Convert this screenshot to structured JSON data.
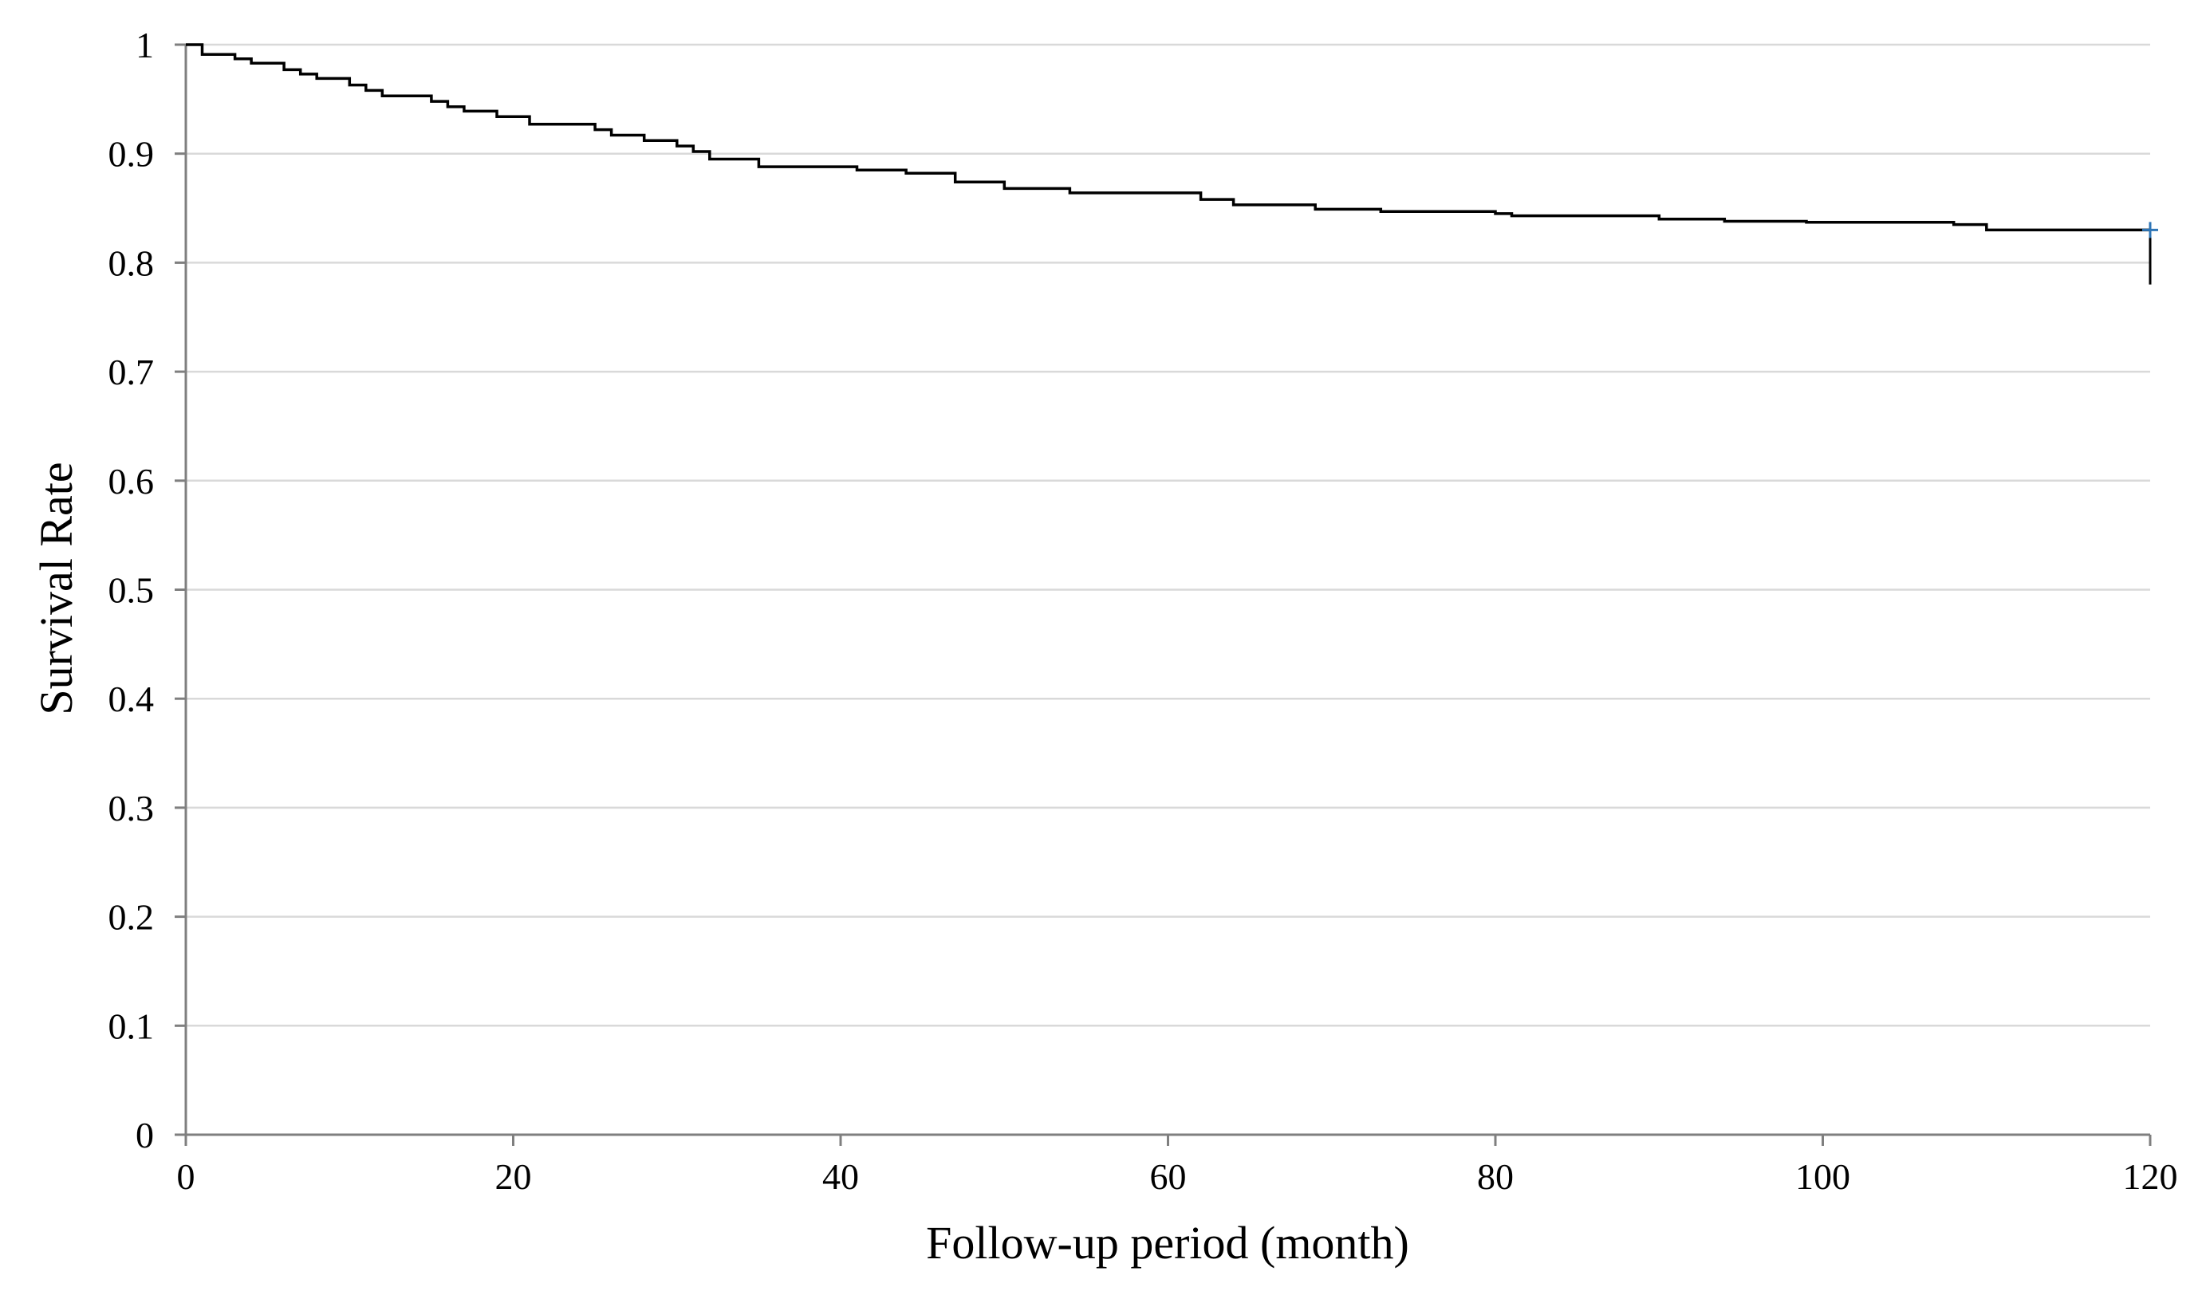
{
  "chart_data": {
    "type": "line",
    "step": true,
    "title": "",
    "xlabel": "Follow-up period (month)",
    "ylabel": "Survival Rate",
    "xlim": [
      0,
      120
    ],
    "ylim": [
      0,
      1
    ],
    "x_ticks": [
      0,
      20,
      40,
      60,
      80,
      100,
      120
    ],
    "x_tick_labels": [
      "0",
      "20",
      "40",
      "60",
      "80",
      "100",
      "120"
    ],
    "y_ticks": [
      0,
      0.1,
      0.2,
      0.3,
      0.4,
      0.5,
      0.6,
      0.7,
      0.8,
      0.9,
      1
    ],
    "y_tick_labels": [
      "0",
      "0.1",
      "0.2",
      "0.3",
      "0.4",
      "0.5",
      "0.6",
      "0.7",
      "0.8",
      "0.9",
      "1"
    ],
    "grid": "horizontal",
    "legend": "none",
    "colors": {
      "line": "#000000",
      "grid": "#d9d9d9",
      "axis": "#7f7f7f",
      "censor_marker": "#2e75b6"
    },
    "series": [
      {
        "x": [
          0,
          1,
          1,
          3,
          3,
          4,
          4,
          6,
          6,
          7,
          7,
          8,
          8,
          10,
          10,
          11,
          11,
          12,
          12,
          15,
          15,
          16,
          16,
          17,
          17,
          19,
          19,
          21,
          21,
          25,
          25,
          26,
          26,
          28,
          28,
          30,
          30,
          31,
          31,
          32,
          32,
          35,
          35,
          41,
          41,
          44,
          44,
          47,
          47,
          50,
          50,
          54,
          54,
          62,
          62,
          64,
          64,
          69,
          69,
          73,
          73,
          80,
          80,
          81,
          81,
          90,
          90,
          94,
          94,
          99,
          99,
          108,
          108,
          110,
          110,
          120
        ],
        "y": [
          1.0,
          1.0,
          0.991,
          0.991,
          0.987,
          0.987,
          0.983,
          0.983,
          0.977,
          0.977,
          0.973,
          0.973,
          0.969,
          0.969,
          0.963,
          0.963,
          0.958,
          0.958,
          0.953,
          0.953,
          0.948,
          0.948,
          0.943,
          0.943,
          0.939,
          0.939,
          0.934,
          0.934,
          0.927,
          0.927,
          0.922,
          0.922,
          0.917,
          0.917,
          0.912,
          0.912,
          0.907,
          0.907,
          0.902,
          0.902,
          0.895,
          0.895,
          0.888,
          0.888,
          0.885,
          0.885,
          0.882,
          0.882,
          0.874,
          0.874,
          0.868,
          0.868,
          0.864,
          0.864,
          0.858,
          0.858,
          0.853,
          0.853,
          0.849,
          0.849,
          0.847,
          0.847,
          0.845,
          0.845,
          0.843,
          0.843,
          0.84,
          0.84,
          0.838,
          0.838,
          0.837,
          0.837,
          0.835,
          0.835,
          0.83,
          0.83
        ]
      }
    ],
    "censor": {
      "x": 120,
      "y": 0.83
    },
    "end_line": {
      "x": 120,
      "y_top": 0.83,
      "y_bottom": 0.78
    }
  }
}
